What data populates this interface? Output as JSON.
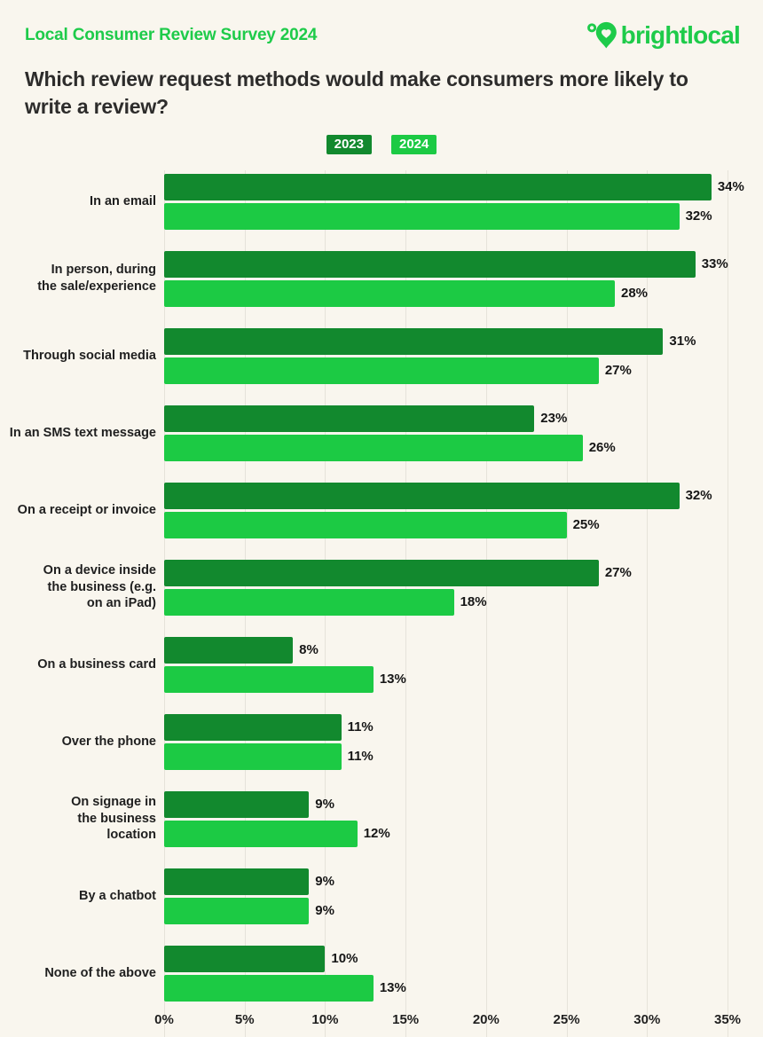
{
  "header": {
    "survey_label": "Local Consumer Review Survey 2024",
    "brand": "brightlocal"
  },
  "title": "Which review request methods would make consumers more likely to write a review?",
  "legend": {
    "items": [
      {
        "label": "2023",
        "color": "#12892E"
      },
      {
        "label": "2024",
        "color": "#1CCA44"
      }
    ]
  },
  "colors": {
    "background": "#F9F6EE",
    "dark_green": "#12892E",
    "light_green": "#1CCA44",
    "brand_green": "#1ECB4A",
    "gridline": "#E6E3DA",
    "text": "#1F1F1F"
  },
  "chart_data": {
    "type": "bar",
    "orientation": "horizontal",
    "title": "Which review request methods would make consumers more likely to write a review?",
    "categories": [
      "In an email",
      "In person, during\nthe sale/experience",
      "Through social media",
      "In an SMS text message",
      "On a receipt or invoice",
      "On a device inside\nthe business (e.g.\non an iPad)",
      "On a business card",
      "Over the phone",
      "On signage in\nthe business\nlocation",
      "By a chatbot",
      "None of the above"
    ],
    "series": [
      {
        "name": "2023",
        "values": [
          34,
          33,
          31,
          23,
          32,
          27,
          8,
          11,
          9,
          9,
          10
        ]
      },
      {
        "name": "2024",
        "values": [
          32,
          28,
          27,
          26,
          25,
          18,
          13,
          11,
          12,
          9,
          13
        ]
      }
    ],
    "value_suffix": "%",
    "x_ticks": [
      "0%",
      "5%",
      "10%",
      "15%",
      "20%",
      "25%",
      "30%",
      "35%"
    ],
    "xlim": [
      0,
      35
    ],
    "grid": true,
    "legend_position": "top-center"
  }
}
